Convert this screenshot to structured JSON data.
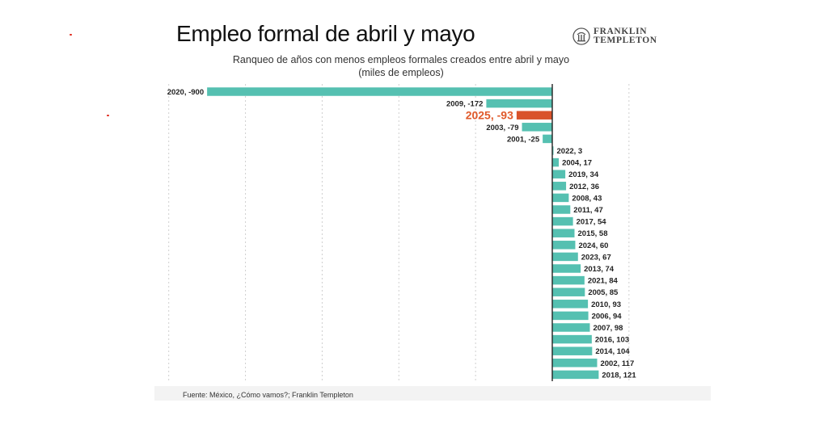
{
  "header": {
    "title": "Empleo formal de abril y mayo",
    "subtitle_line1": "Ranqueo de años con menos empleos formales creados entre abril y mayo",
    "subtitle_line2": "(miles de empleos)"
  },
  "logo": {
    "line1": "FRANKLIN",
    "line2": "TEMPLETON",
    "icon": "franklin-templeton-logo-icon"
  },
  "footer": {
    "source": "Fuente: México, ¿Cómo vamos?; Franklin Templeton"
  },
  "colors": {
    "bar": "#55c0b1",
    "highlight": "#d9532b",
    "highlight_text": "#e05a2b",
    "axis": "#222222",
    "grid": "#cfcfcf"
  },
  "chart_data": {
    "type": "bar",
    "orientation": "horizontal",
    "highlight": "2025",
    "categories": [
      "2020",
      "2009",
      "2025",
      "2003",
      "2001",
      "2022",
      "2004",
      "2019",
      "2012",
      "2008",
      "2011",
      "2017",
      "2015",
      "2024",
      "2023",
      "2013",
      "2021",
      "2005",
      "2010",
      "2006",
      "2007",
      "2016",
      "2014",
      "2002",
      "2018"
    ],
    "values": [
      -900,
      -172,
      -93,
      -79,
      -25,
      3,
      17,
      34,
      36,
      43,
      47,
      54,
      58,
      60,
      67,
      74,
      84,
      85,
      93,
      94,
      98,
      103,
      104,
      117,
      121
    ],
    "labels": [
      "2020, -900",
      "2009, -172",
      "2025, -93",
      "2003, -79",
      "2001, -25",
      "2022, 3",
      "2004, 17",
      "2019, 34",
      "2012, 36",
      "2008, 43",
      "2011, 47",
      "2017, 54",
      "2015, 58",
      "2024, 60",
      "2023, 67",
      "2013, 74",
      "2021, 84",
      "2005, 85",
      "2010, 93",
      "2006, 94",
      "2007, 98",
      "2016, 103",
      "2014, 104",
      "2002, 117",
      "2018, 121"
    ],
    "xlim": [
      -1000,
      200
    ],
    "grid": true
  }
}
